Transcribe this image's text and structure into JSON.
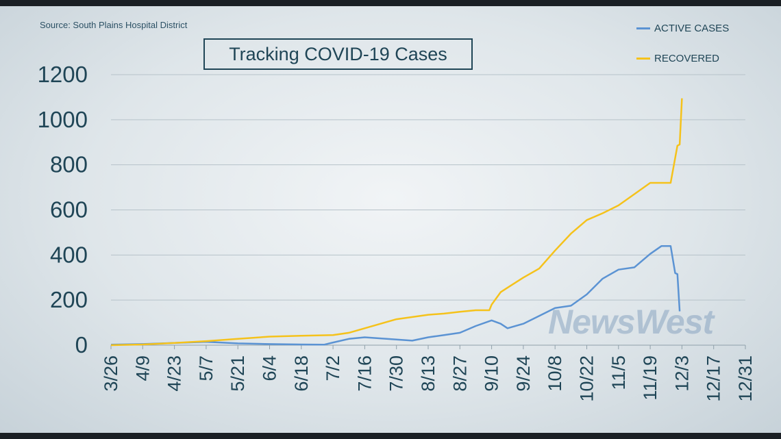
{
  "source": "Source: South Plains Hospital District",
  "title": "Tracking COVID-19 Cases",
  "watermark": "NewsWest",
  "colors": {
    "active": "#5b93d3",
    "recovered": "#f5c21b",
    "grid": "#b6c2c9",
    "text": "#1f4556"
  },
  "chart_data": {
    "type": "line",
    "title": "Tracking COVID-19 Cases",
    "xlabel": "",
    "ylabel": "",
    "ylim": [
      0,
      1200
    ],
    "yticks": [
      "0",
      "200",
      "400",
      "600",
      "800",
      "1000",
      "1200"
    ],
    "xticks": [
      "3/26",
      "4/9",
      "4/23",
      "5/7",
      "5/21",
      "6/4",
      "6/18",
      "7/2",
      "7/16",
      "7/30",
      "8/13",
      "8/27",
      "9/10",
      "9/24",
      "10/8",
      "10/22",
      "11/5",
      "11/19",
      "12/3",
      "12/17",
      "12/31"
    ],
    "grid": true,
    "legend": "top-right",
    "series": [
      {
        "name": "ACTIVE CASES",
        "points": [
          [
            "3/26",
            2
          ],
          [
            "4/9",
            5
          ],
          [
            "4/23",
            10
          ],
          [
            "5/7",
            15
          ],
          [
            "5/21",
            8
          ],
          [
            "6/4",
            5
          ],
          [
            "6/18",
            3
          ],
          [
            "6/28",
            2
          ],
          [
            "7/2",
            12
          ],
          [
            "7/9",
            28
          ],
          [
            "7/16",
            35
          ],
          [
            "7/23",
            30
          ],
          [
            "7/30",
            25
          ],
          [
            "8/6",
            20
          ],
          [
            "8/13",
            35
          ],
          [
            "8/20",
            45
          ],
          [
            "8/27",
            55
          ],
          [
            "9/3",
            85
          ],
          [
            "9/10",
            110
          ],
          [
            "9/14",
            95
          ],
          [
            "9/17",
            75
          ],
          [
            "9/24",
            95
          ],
          [
            "10/1",
            130
          ],
          [
            "10/8",
            165
          ],
          [
            "10/15",
            175
          ],
          [
            "10/22",
            225
          ],
          [
            "10/29",
            295
          ],
          [
            "11/5",
            335
          ],
          [
            "11/12",
            345
          ],
          [
            "11/19",
            405
          ],
          [
            "11/24",
            440
          ],
          [
            "11/28",
            440
          ],
          [
            "11/30",
            320
          ],
          [
            "12/1",
            315
          ],
          [
            "12/2",
            150
          ]
        ]
      },
      {
        "name": "RECOVERED",
        "points": [
          [
            "3/26",
            0
          ],
          [
            "4/9",
            3
          ],
          [
            "4/23",
            10
          ],
          [
            "5/7",
            18
          ],
          [
            "5/21",
            28
          ],
          [
            "6/4",
            38
          ],
          [
            "6/18",
            42
          ],
          [
            "7/2",
            45
          ],
          [
            "7/9",
            55
          ],
          [
            "7/16",
            75
          ],
          [
            "7/23",
            95
          ],
          [
            "7/30",
            115
          ],
          [
            "8/6",
            125
          ],
          [
            "8/13",
            135
          ],
          [
            "8/20",
            140
          ],
          [
            "8/27",
            148
          ],
          [
            "9/3",
            155
          ],
          [
            "9/9",
            155
          ],
          [
            "9/10",
            180
          ],
          [
            "9/14",
            235
          ],
          [
            "9/17",
            255
          ],
          [
            "9/24",
            300
          ],
          [
            "10/1",
            340
          ],
          [
            "10/8",
            420
          ],
          [
            "10/15",
            495
          ],
          [
            "10/22",
            555
          ],
          [
            "10/29",
            585
          ],
          [
            "11/5",
            620
          ],
          [
            "11/12",
            670
          ],
          [
            "11/19",
            720
          ],
          [
            "11/28",
            720
          ],
          [
            "12/1",
            885
          ],
          [
            "12/2",
            890
          ],
          [
            "12/3",
            1095
          ]
        ]
      }
    ]
  }
}
